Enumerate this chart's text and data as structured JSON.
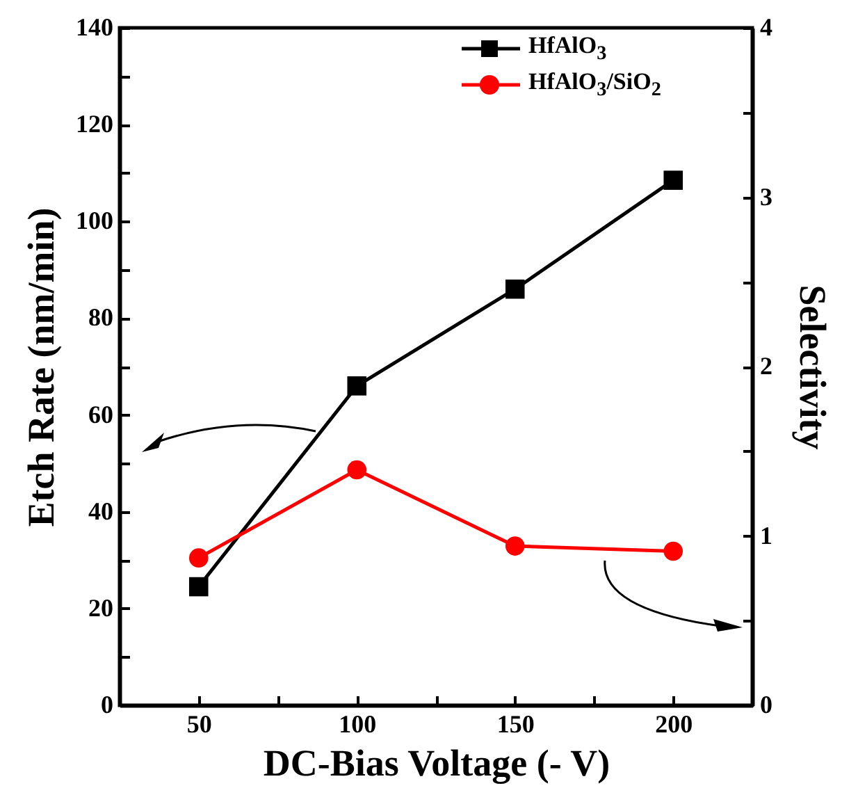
{
  "chart_data": {
    "type": "line",
    "xlabel": "DC-Bias Voltage (- V)",
    "ylabel": "Etch Rate (nm/min)",
    "y2label": "Selectivity",
    "x": [
      50,
      100,
      150,
      200
    ],
    "series": [
      {
        "name": "HfAlO$_{3}$",
        "color": "#000000",
        "marker": "square",
        "values": [
          24.5,
          66,
          86,
          108.5
        ]
      },
      {
        "name": "HfAlO$_{3}$/SiO$_{2}$",
        "color": "#ff0000",
        "marker": "circle",
        "axis": "y2",
        "values": [
          0.87,
          1.39,
          0.94,
          0.91
        ]
      }
    ],
    "xlim": [
      25,
      225
    ],
    "xticks": [
      50,
      {
        "value": 75,
        "label": null
      },
      100,
      {
        "value": 125,
        "label": null
      },
      150,
      {
        "value": 175,
        "label": null
      },
      200
    ],
    "ylim": [
      0,
      140
    ],
    "yticks": [
      0,
      {
        "value": 10,
        "label": null
      },
      20,
      {
        "value": 30,
        "label": null
      },
      40,
      {
        "value": 50,
        "label": null
      },
      60,
      {
        "value": 70,
        "label": null
      },
      80,
      {
        "value": 90,
        "label": null
      },
      100,
      {
        "value": 110,
        "label": null
      },
      120,
      {
        "value": 130,
        "label": null
      },
      140
    ],
    "y2lim": [
      0,
      4
    ],
    "y2ticks": [
      0,
      {
        "value": 0.5,
        "label": null
      },
      1,
      {
        "value": 1.5,
        "label": null
      },
      2,
      {
        "value": 2.5,
        "label": null
      },
      3,
      {
        "value": 3.5,
        "label": null
      },
      4
    ],
    "legend": "top right",
    "grid": false,
    "line_style": "solid"
  }
}
